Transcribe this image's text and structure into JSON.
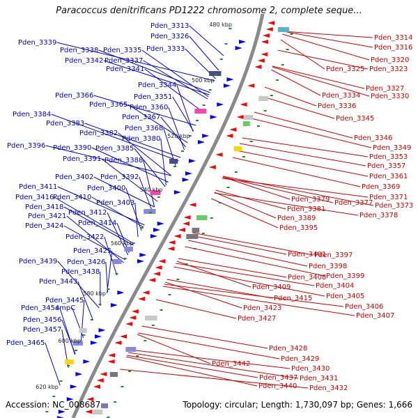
{
  "title": "Paracoccus denitrificans PD1222 chromosome 2, complete seque...",
  "footer": {
    "accession": "Accession: NC_008687",
    "summary": "Topology: circular; Length: 1,730,097 bp; Genes: 1,666"
  },
  "colors": {
    "left_labels": "#0000cc",
    "right_labels": "#cc0000",
    "ring": "#888888",
    "tick_marks": "#228b22",
    "forward_genes": "#0000ff",
    "reverse_genes": "#ff0000"
  },
  "ticks": [
    "480 kbp",
    "500 kbp",
    "520 kbp",
    "540 kbp",
    "560 kbp",
    "580 kbp",
    "600 kbp",
    "620 kbp"
  ],
  "left_labels": [
    "Pden_3313",
    "Pden_3326",
    "Pden_3339",
    "Pden_3338",
    "Pden_3335",
    "Pden_3333",
    "Pden_3342",
    "Pden_3337",
    "Pden_3341",
    "Pden_3344",
    "Pden_3366",
    "Pden_3351",
    "Pden_3365",
    "Pden_3360",
    "Pden_3384",
    "Pden_3367",
    "Pden_3383",
    "Pden_3368",
    "Pden_3382",
    "Pden_3380",
    "Pden_3396",
    "Pden_3390",
    "Pden_3385",
    "Pden_3391",
    "Pden_3388",
    "Pden_3402",
    "Pden_3392",
    "Pden_3411",
    "Pden_3400",
    "Pden_3416",
    "Pden_3410",
    "Pden_3403",
    "Pden_3418",
    "Pden_3412",
    "Pden_3421",
    "Pden_3414",
    "Pden_3424",
    "Pden_3422",
    "Pden_3425",
    "Pden_3439",
    "Pden_3426",
    "Pden_3438",
    "Pden_3443",
    "Pden_3445",
    "Pden_3454",
    "ampC",
    "Pden_3456",
    "Pden_3457",
    "Pden_3465"
  ],
  "right_labels": [
    "Pden_3314",
    "Pden_3316",
    "Pden_3320",
    "Pden_3325",
    "Pden_3323",
    "Pden_3327",
    "Pden_3334",
    "Pden_3330",
    "Pden_3336",
    "Pden_3345",
    "Pden_3346",
    "Pden_3349",
    "Pden_3353",
    "Pden_3357",
    "Pden_3361",
    "Pden_3369",
    "Pden_3371",
    "Pden_3379",
    "Pden_3377",
    "Pden_3373",
    "Pden_3381",
    "Pden_3378",
    "Pden_3389",
    "Pden_3395",
    "Pden_3401",
    "Pden_3397",
    "Pden_3398",
    "Pden_3399",
    "Pden_3408",
    "Pden_3404",
    "Pden_3409",
    "Pden_3405",
    "Pden_3415",
    "Pden_3406",
    "Pden_3423",
    "Pden_3407",
    "Pden_3427",
    "Pden_3428",
    "Pden_3429",
    "Pden_3442",
    "Pden_3430",
    "Pden_3437",
    "Pden_3431",
    "Pden_3440",
    "Pden_3432"
  ]
}
